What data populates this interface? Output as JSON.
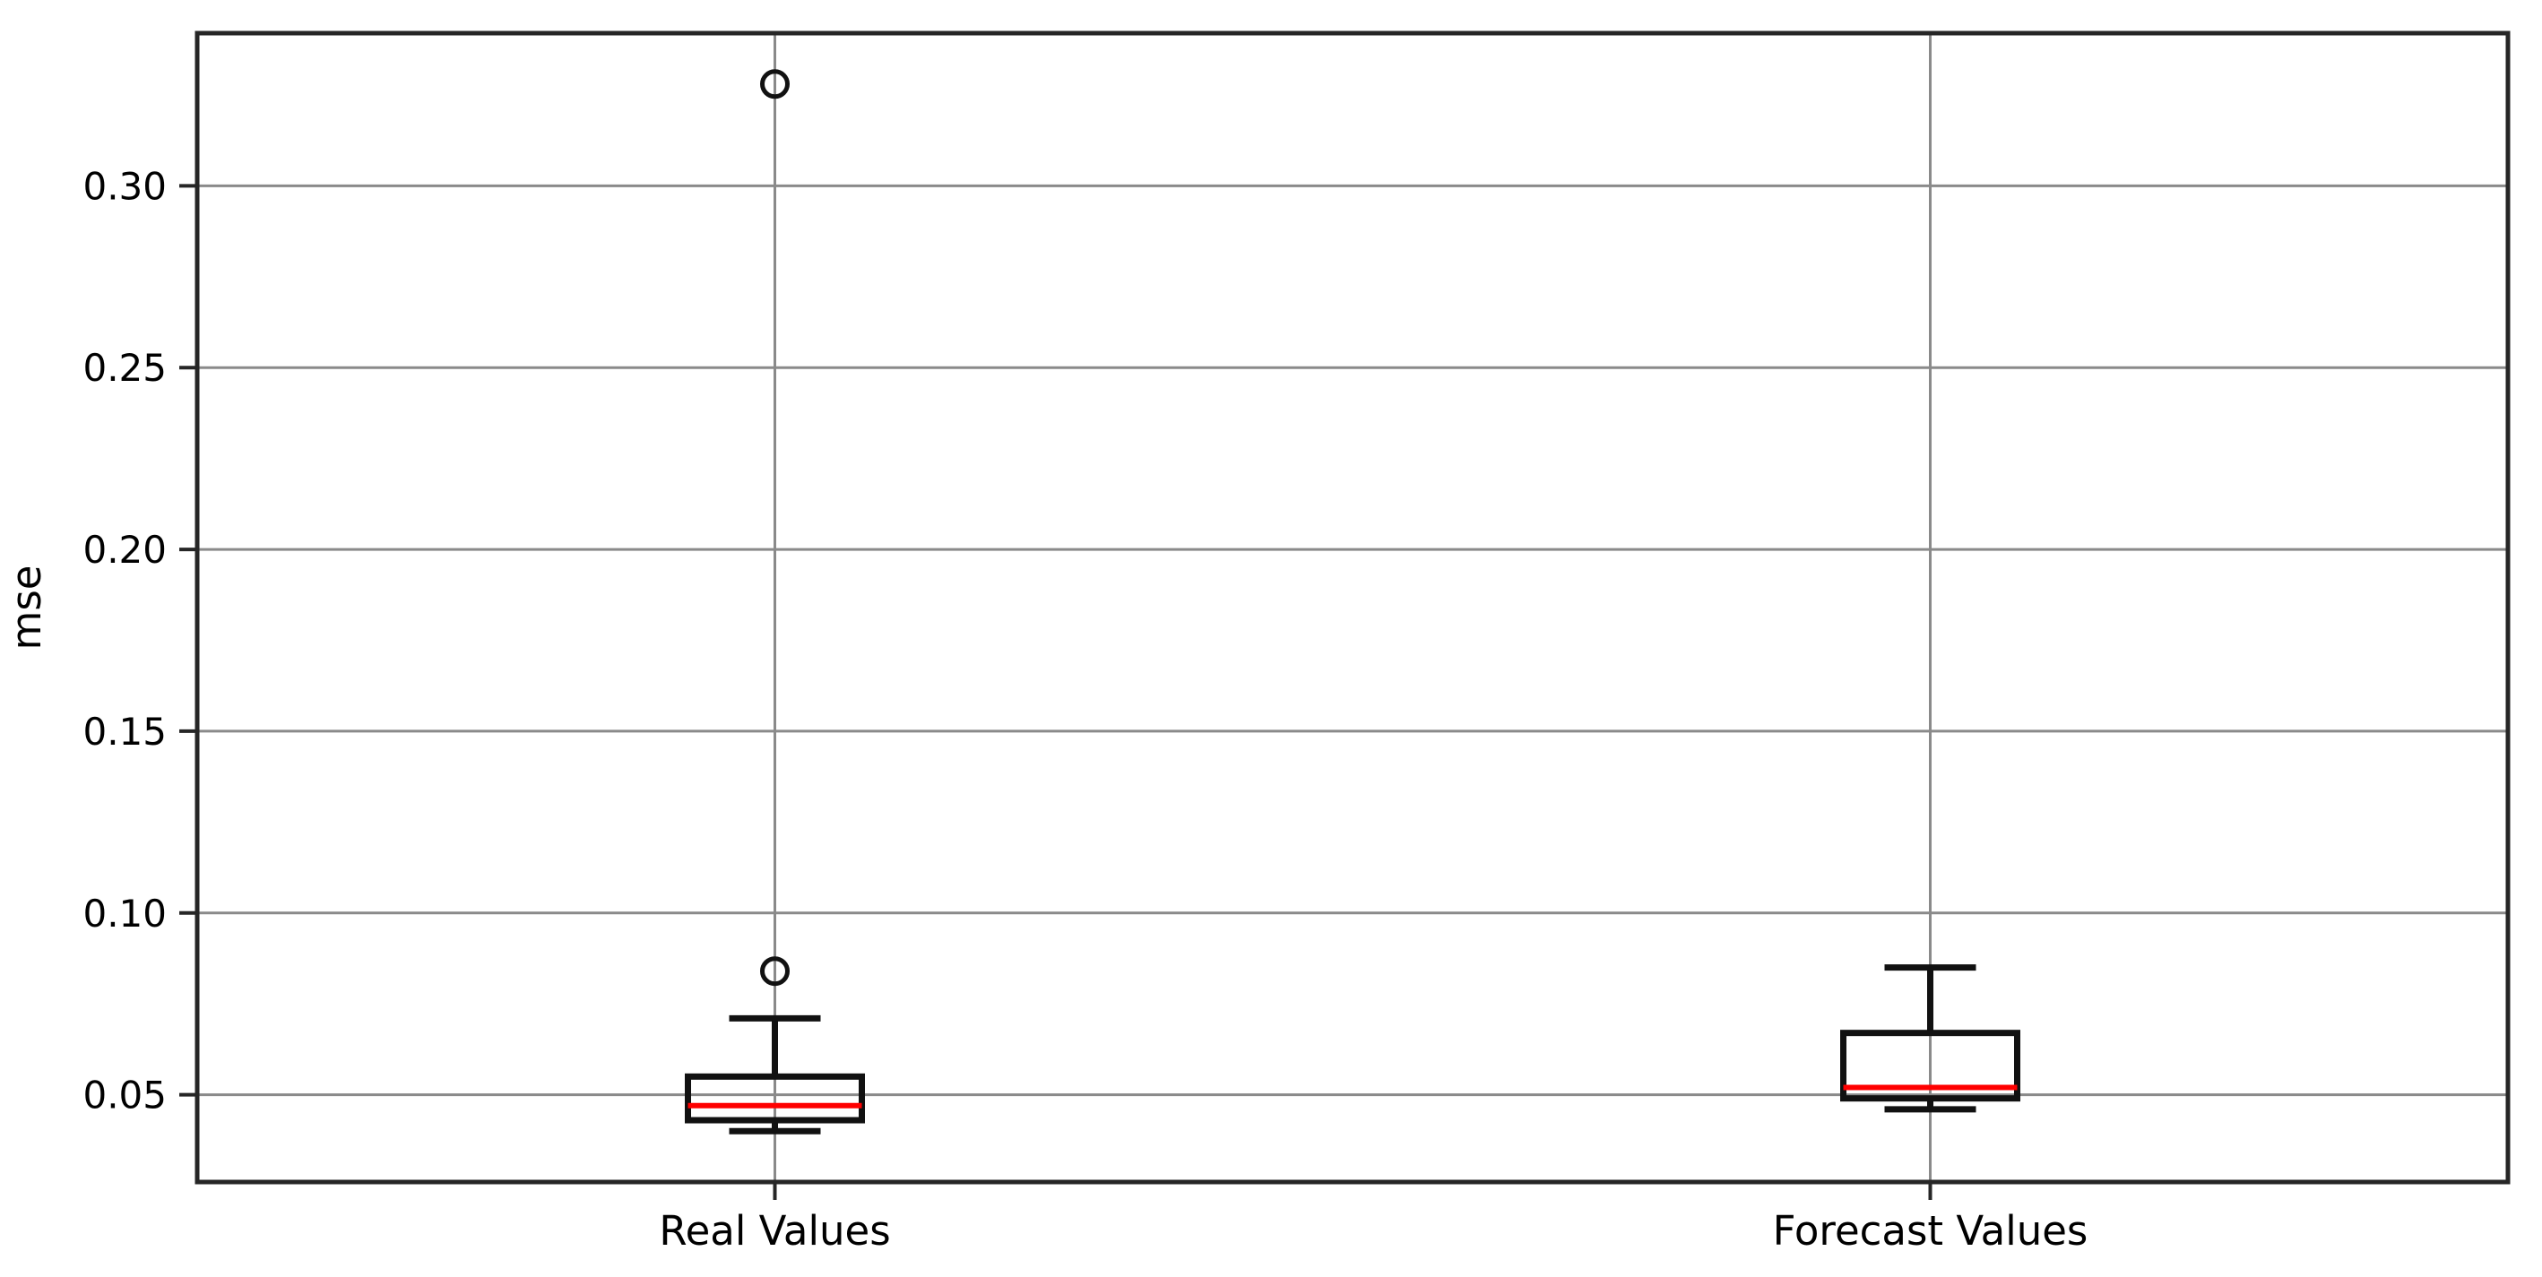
{
  "chart_data": {
    "type": "boxplot",
    "title": "",
    "xlabel": "",
    "ylabel": "mse",
    "categories": [
      "Real Values",
      "Forecast Values"
    ],
    "yticks": [
      {
        "value": 0.05,
        "label": "0.05"
      },
      {
        "value": 0.1,
        "label": "0.10"
      },
      {
        "value": 0.15,
        "label": "0.15"
      },
      {
        "value": 0.2,
        "label": "0.20"
      },
      {
        "value": 0.25,
        "label": "0.25"
      },
      {
        "value": 0.3,
        "label": "0.30"
      }
    ],
    "ylim": [
      0.026,
      0.342
    ],
    "grid": true,
    "legend": "none",
    "series": [
      {
        "name": "Real Values",
        "whisker_low": 0.04,
        "q1": 0.043,
        "median": 0.047,
        "q3": 0.055,
        "whisker_high": 0.071,
        "outliers": [
          0.084,
          0.328
        ]
      },
      {
        "name": "Forecast Values",
        "whisker_low": 0.046,
        "q1": 0.049,
        "median": 0.052,
        "q3": 0.067,
        "whisker_high": 0.085,
        "outliers": []
      }
    ],
    "colors": {
      "box": "#111111",
      "whisker": "#111111",
      "median": "#ff0000",
      "outlier": "#111111",
      "grid": "#8a8a8a",
      "spine": "#262626",
      "text": "#000000",
      "background": "#ffffff"
    }
  }
}
